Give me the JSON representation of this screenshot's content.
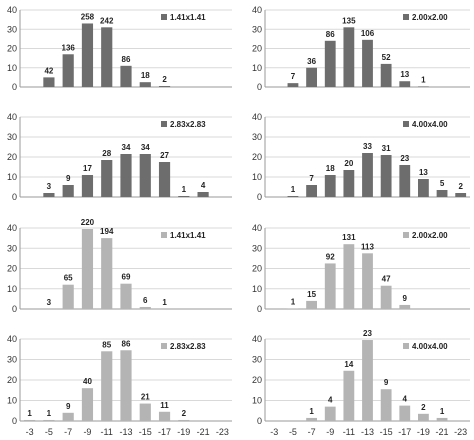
{
  "colors": {
    "dark": "#6d6d6d",
    "light": "#b4b4b4"
  },
  "chart_data": [
    {
      "type": "bar",
      "panel": "row1-left",
      "color": "dark",
      "x": [
        -3,
        -5,
        -7,
        -9,
        -11,
        -13,
        -15,
        -17,
        -19,
        -21,
        -23
      ],
      "values": [
        0,
        5,
        17,
        33,
        31,
        11,
        2.5,
        0.5,
        0,
        0,
        0
      ],
      "labels": [
        "",
        "42",
        "136",
        "258",
        "242",
        "86",
        "18",
        "2",
        "",
        "",
        ""
      ],
      "legend": "1.41x1.41",
      "ylim": [
        0,
        40
      ],
      "yticks": [
        "0",
        "10",
        "20",
        "30",
        "40"
      ]
    },
    {
      "type": "bar",
      "panel": "row1-right",
      "color": "dark",
      "x": [
        -3,
        -5,
        -7,
        -9,
        -11,
        -13,
        -15,
        -17,
        -19,
        -21,
        -23
      ],
      "values": [
        0,
        2,
        10,
        24,
        31,
        24.5,
        12,
        3,
        0.3,
        0,
        0
      ],
      "labels": [
        "",
        "7",
        "36",
        "86",
        "135",
        "106",
        "52",
        "13",
        "1",
        "",
        ""
      ],
      "legend": "2.00x2.00",
      "ylim": [
        0,
        40
      ],
      "yticks": [
        "0",
        "10",
        "20",
        "30",
        "40"
      ]
    },
    {
      "type": "bar",
      "panel": "row2-left",
      "color": "dark",
      "x": [
        -3,
        -5,
        -7,
        -9,
        -11,
        -13,
        -15,
        -17,
        -19,
        -21,
        -23
      ],
      "values": [
        0,
        2,
        6,
        11,
        18.5,
        21.5,
        21.5,
        17.5,
        0.5,
        2.5,
        0
      ],
      "labels": [
        "",
        "3",
        "9",
        "17",
        "28",
        "34",
        "34",
        "27",
        "1",
        "4",
        ""
      ],
      "legend": "2.83x2.83",
      "ylim": [
        0,
        40
      ],
      "yticks": [
        "0",
        "10",
        "20",
        "30",
        "40"
      ]
    },
    {
      "type": "bar",
      "panel": "row2-right",
      "color": "dark",
      "x": [
        -3,
        -5,
        -7,
        -9,
        -11,
        -13,
        -15,
        -17,
        -19,
        -21,
        -23
      ],
      "values": [
        0,
        0.5,
        6,
        11,
        13.5,
        22,
        21,
        16,
        9,
        3.5,
        2
      ],
      "labels": [
        "",
        "1",
        "7",
        "18",
        "20",
        "33",
        "31",
        "23",
        "13",
        "5",
        "2"
      ],
      "legend": "4.00x4.00",
      "ylim": [
        0,
        40
      ],
      "yticks": [
        "0",
        "10",
        "20",
        "30",
        "40"
      ]
    },
    {
      "type": "bar",
      "panel": "row3-left",
      "color": "light",
      "x": [
        -3,
        -5,
        -7,
        -9,
        -11,
        -13,
        -15,
        -17,
        -19,
        -21,
        -23
      ],
      "values": [
        0,
        0,
        12,
        39.5,
        35,
        12.5,
        1,
        0,
        0,
        0,
        0
      ],
      "labels": [
        "",
        "3",
        "65",
        "220",
        "194",
        "69",
        "6",
        "1",
        "",
        "",
        ""
      ],
      "legend": "1.41x1.41",
      "ylim": [
        0,
        40
      ],
      "yticks": [
        "0",
        "10",
        "20",
        "30",
        "40"
      ]
    },
    {
      "type": "bar",
      "panel": "row3-right",
      "color": "light",
      "x": [
        -3,
        -5,
        -7,
        -9,
        -11,
        -13,
        -15,
        -17,
        -19,
        -21,
        -23
      ],
      "values": [
        0,
        0.3,
        4,
        22.5,
        32,
        27.5,
        11.5,
        2,
        0,
        0,
        0
      ],
      "labels": [
        "",
        "1",
        "15",
        "92",
        "131",
        "113",
        "47",
        "9",
        "",
        "",
        ""
      ],
      "legend": "2.00x2.00",
      "ylim": [
        0,
        40
      ],
      "yticks": [
        "0",
        "10",
        "20",
        "30",
        "40"
      ]
    },
    {
      "type": "bar",
      "panel": "row4-left",
      "color": "light",
      "x": [
        -3,
        -5,
        -7,
        -9,
        -11,
        -13,
        -15,
        -17,
        -19,
        -21,
        -23
      ],
      "values": [
        0.5,
        0.5,
        4,
        16,
        34,
        34.5,
        8.5,
        4.5,
        0.5,
        0,
        0
      ],
      "labels": [
        "1",
        "1",
        "9",
        "40",
        "85",
        "86",
        "21",
        "11",
        "2",
        "",
        ""
      ],
      "legend": "2.83x2.83",
      "ylim": [
        0,
        40
      ],
      "yticks": [
        "0",
        "10",
        "20",
        "30",
        "40"
      ]
    },
    {
      "type": "bar",
      "panel": "row4-right",
      "color": "light",
      "x": [
        -3,
        -5,
        -7,
        -9,
        -11,
        -13,
        -15,
        -17,
        -19,
        -21,
        -23
      ],
      "values": [
        0,
        0,
        1.5,
        7,
        24.5,
        39.5,
        15.5,
        7.5,
        3.5,
        1.5,
        0
      ],
      "labels": [
        "",
        "",
        "1",
        "4",
        "14",
        "23",
        "9",
        "4",
        "2",
        "1",
        ""
      ],
      "legend": "4.00x4.00",
      "ylim": [
        0,
        40
      ],
      "yticks": [
        "0",
        "10",
        "20",
        "30",
        "40"
      ]
    }
  ],
  "xticks": [
    "-3",
    "-5",
    "-7",
    "-9",
    "-11",
    "-13",
    "-15",
    "-17",
    "-19",
    "-21",
    "-23"
  ]
}
